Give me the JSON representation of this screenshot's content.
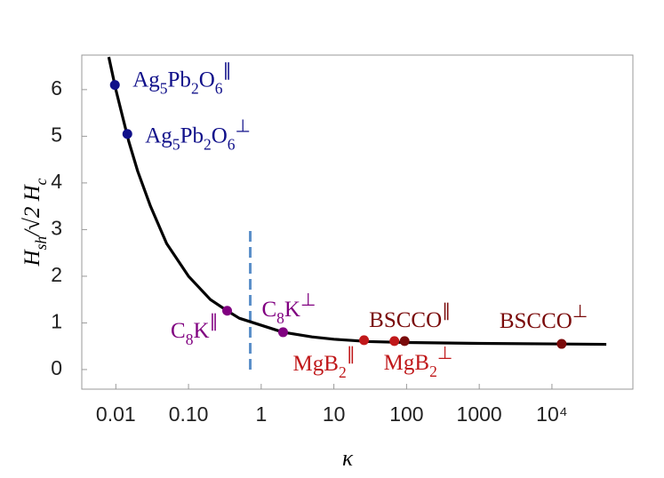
{
  "chart_data": {
    "type": "line",
    "x_label": "κ",
    "y_label": "Hsh/√2 Hc",
    "xscale": "log",
    "xlim": [
      0.0034,
      130000
    ],
    "ylim": [
      -0.42,
      6.74
    ],
    "xticks": [
      0.01,
      {
        "value": 0.1,
        "label": "0.10"
      },
      1,
      10,
      100,
      1000,
      {
        "value": 10000,
        "label": "10⁴"
      }
    ],
    "yticks": [
      0,
      1,
      2,
      3,
      4,
      5,
      6
    ],
    "series": [
      {
        "name": "curve",
        "color": "#000000",
        "x": [
          0.008,
          0.01,
          0.015,
          0.02,
          0.03,
          0.05,
          0.1,
          0.2,
          0.34,
          0.5,
          1,
          2,
          5,
          10,
          30,
          100,
          1000,
          10000,
          56000
        ],
        "values": [
          6.7,
          6.0,
          4.9,
          4.25,
          3.5,
          2.7,
          2.0,
          1.5,
          1.26,
          1.1,
          0.95,
          0.8,
          0.7,
          0.65,
          0.6,
          0.58,
          0.56,
          0.55,
          0.54
        ]
      }
    ],
    "dashed_line": {
      "x": 0.707,
      "y": [
        0,
        3
      ],
      "color": "#5b8fc9"
    },
    "points": [
      {
        "label": "Ag5Pb2O6∥",
        "x": 0.0097,
        "value": 6.1,
        "color": "#10108a"
      },
      {
        "label": "Ag5Pb2O6⊥",
        "x": 0.0144,
        "value": 5.05,
        "color": "#10108a"
      },
      {
        "label": "C8K∥",
        "x": 0.34,
        "value": 1.26,
        "color": "#800080"
      },
      {
        "label": "C8K⊥",
        "x": 2.0,
        "value": 0.8,
        "color": "#800080"
      },
      {
        "label": "MgB2∥",
        "x": 26,
        "value": 0.63,
        "color": "#c0181a"
      },
      {
        "label": "MgB2⊥",
        "x": 68,
        "value": 0.61,
        "color": "#c0181a"
      },
      {
        "label": "BSCCO∥",
        "x": 94,
        "value": 0.61,
        "color": "#7a0a0a"
      },
      {
        "label": "BSCCO⊥",
        "x": 13600,
        "value": 0.55,
        "color": "#7a0a0a"
      }
    ]
  }
}
